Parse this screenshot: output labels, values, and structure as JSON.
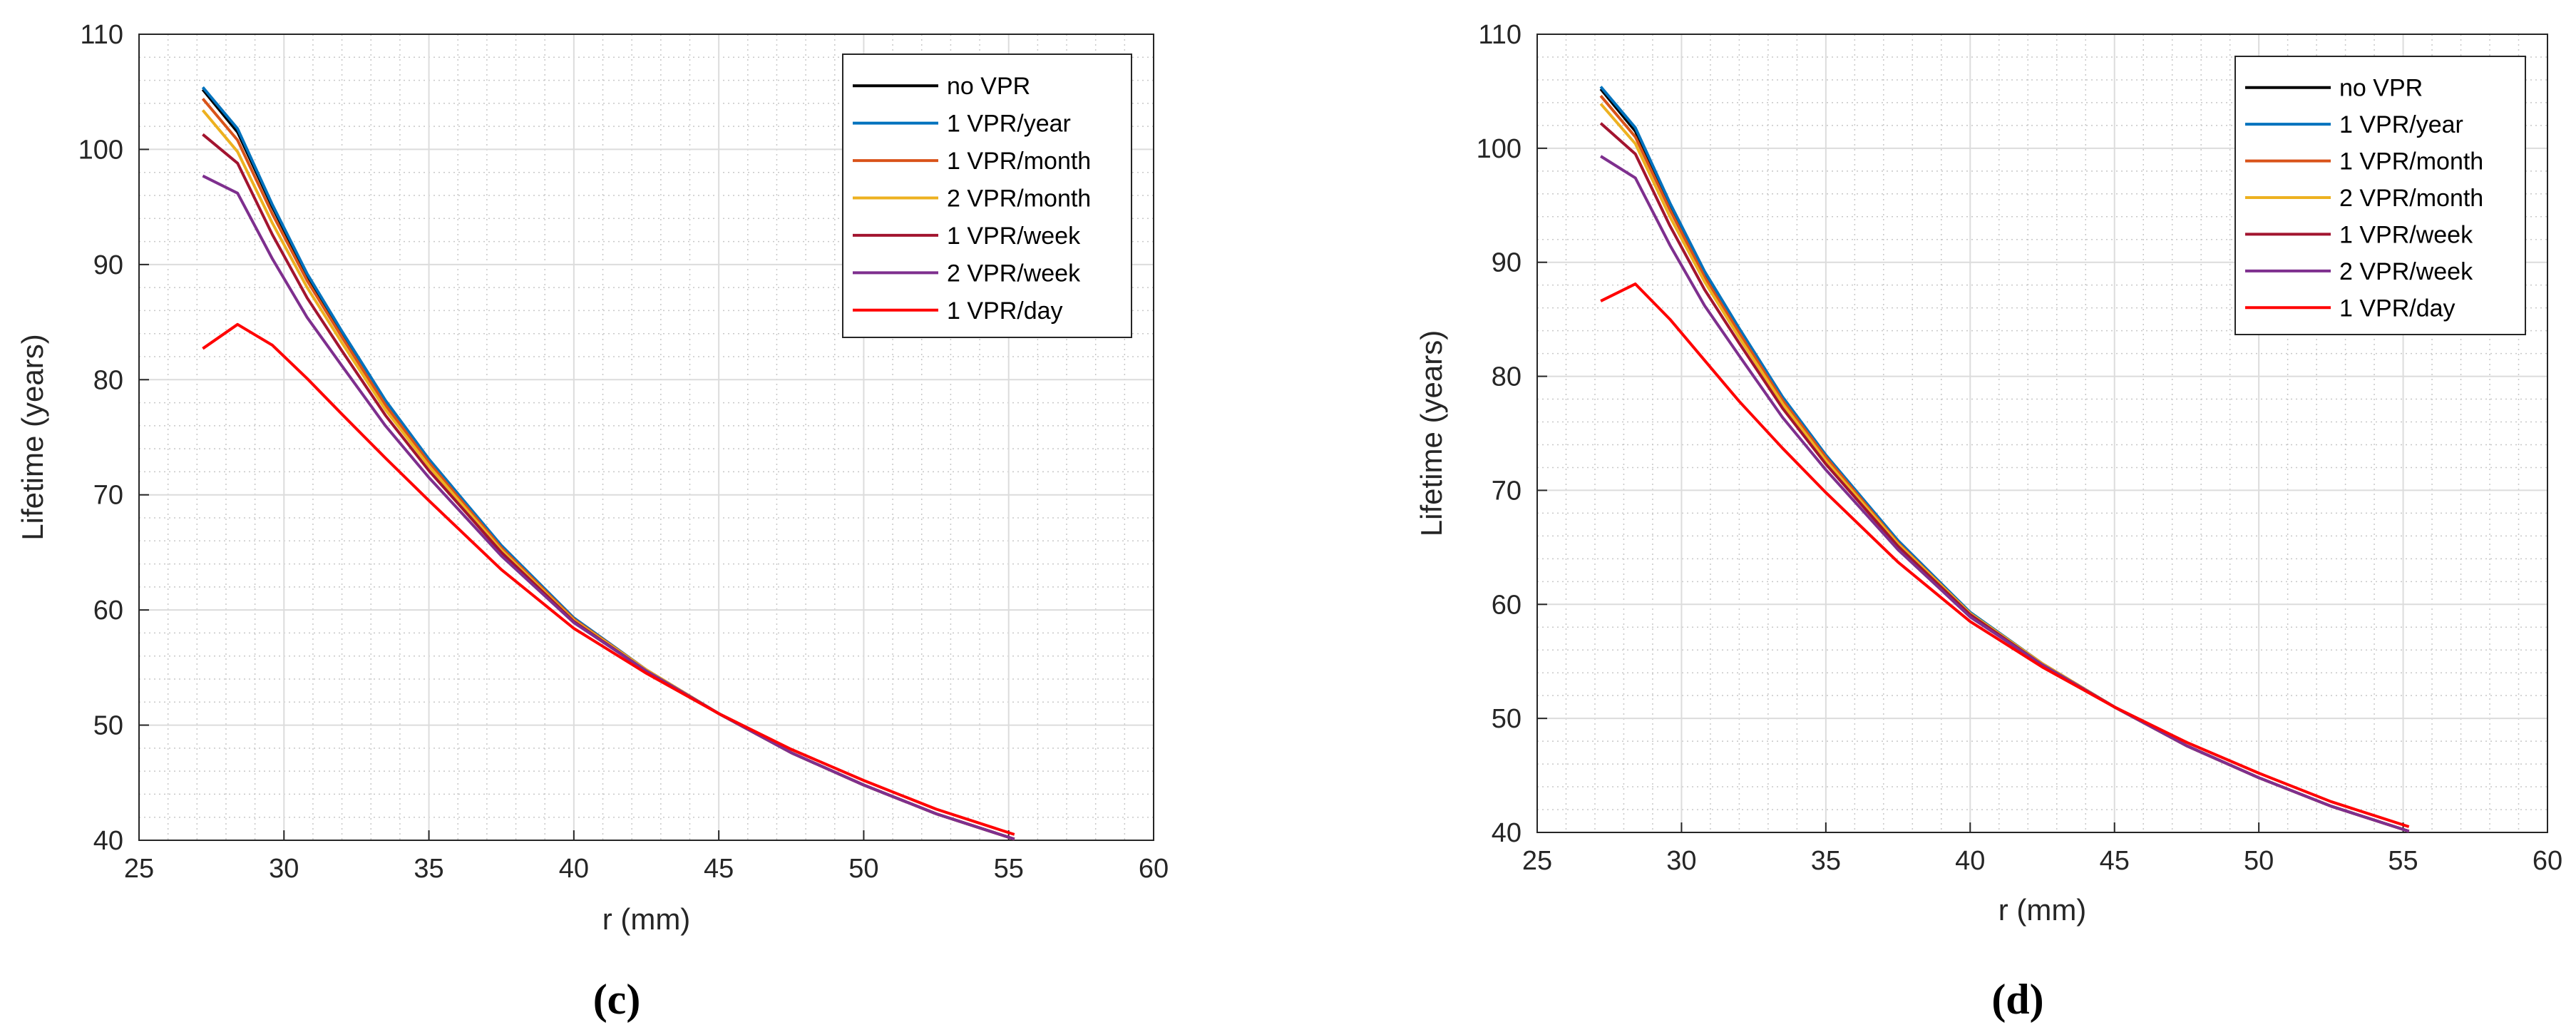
{
  "legend_location": "top-right",
  "chart_data": [
    {
      "type": "line",
      "panel_label": "(c)",
      "xlabel": "r (mm)",
      "ylabel": "Lifetime (years)",
      "xlim": [
        25,
        60
      ],
      "ylim": [
        40,
        110
      ],
      "xticks": [
        "25",
        "30",
        "35",
        "40",
        "45",
        "50",
        "55",
        "60"
      ],
      "yticks": [
        "40",
        "50",
        "60",
        "70",
        "80",
        "90",
        "100",
        "110"
      ],
      "grid": true,
      "minor_grid": true,
      "x": [
        27.2,
        28.4,
        29.6,
        30.8,
        32,
        33.5,
        35,
        37.5,
        40,
        42.5,
        45,
        47.5,
        50,
        52.5,
        55.2
      ],
      "series": [
        {
          "name": "no VPR",
          "color": "#000000",
          "values": [
            105.2,
            101.5,
            95,
            89,
            84,
            78,
            73,
            65.5,
            59.3,
            54.8,
            51,
            47.6,
            44.8,
            42.3,
            40.1
          ]
        },
        {
          "name": "1 VPR/year",
          "color": "#0072BD",
          "values": [
            105.4,
            101.8,
            95.2,
            89.2,
            84.2,
            78.2,
            73.1,
            65.6,
            59.3,
            54.8,
            51,
            47.6,
            44.8,
            42.3,
            40.1
          ]
        },
        {
          "name": "1 VPR/month",
          "color": "#D95319",
          "values": [
            104.4,
            100.8,
            94.4,
            88.6,
            83.7,
            77.8,
            72.8,
            65.4,
            59.2,
            54.8,
            51,
            47.6,
            44.8,
            42.3,
            40.1
          ]
        },
        {
          "name": "2 VPR/month",
          "color": "#EDB120",
          "values": [
            103.4,
            99.8,
            93.6,
            88,
            83.2,
            77.4,
            72.5,
            65.2,
            59.1,
            54.8,
            51,
            47.6,
            44.8,
            42.3,
            40.1
          ]
        },
        {
          "name": "1 VPR/week",
          "color": "#A2142F",
          "values": [
            101.3,
            98.8,
            92.6,
            87.1,
            82.5,
            76.9,
            72.1,
            65,
            59,
            54.7,
            51,
            47.6,
            44.8,
            42.3,
            40.1
          ]
        },
        {
          "name": "2 VPR/week",
          "color": "#7E2F8E",
          "values": [
            97.7,
            96.2,
            90.5,
            85.4,
            81.2,
            76,
            71.5,
            64.7,
            58.9,
            54.7,
            51,
            47.6,
            44.8,
            42.3,
            40.1
          ]
        },
        {
          "name": "1 VPR/day",
          "color": "#FF0000",
          "values": [
            82.7,
            84.8,
            83,
            80.1,
            77,
            73.2,
            69.5,
            63.5,
            58.4,
            54.5,
            51,
            47.9,
            45.2,
            42.7,
            40.5
          ]
        }
      ]
    },
    {
      "type": "line",
      "panel_label": "(d)",
      "xlabel": "r (mm)",
      "ylabel": "Lifetime (years)",
      "xlim": [
        25,
        60
      ],
      "ylim": [
        40,
        110
      ],
      "xticks": [
        "25",
        "30",
        "35",
        "40",
        "45",
        "50",
        "55",
        "60"
      ],
      "yticks": [
        "40",
        "50",
        "60",
        "70",
        "80",
        "90",
        "100",
        "110"
      ],
      "grid": true,
      "minor_grid": true,
      "x": [
        27.2,
        28.4,
        29.6,
        30.8,
        32,
        33.5,
        35,
        37.5,
        40,
        42.5,
        45,
        47.5,
        50,
        52.5,
        55.2
      ],
      "series": [
        {
          "name": "no VPR",
          "color": "#000000",
          "values": [
            105.2,
            101.5,
            95,
            89,
            84,
            78,
            73,
            65.5,
            59.3,
            54.8,
            51,
            47.6,
            44.8,
            42.3,
            40.1
          ]
        },
        {
          "name": "1 VPR/year",
          "color": "#0072BD",
          "values": [
            105.4,
            101.8,
            95.2,
            89.2,
            84.2,
            78.2,
            73.1,
            65.6,
            59.3,
            54.8,
            51,
            47.6,
            44.8,
            42.3,
            40.1
          ]
        },
        {
          "name": "1 VPR/month",
          "color": "#D95319",
          "values": [
            104.6,
            101,
            94.6,
            88.7,
            83.8,
            77.9,
            72.9,
            65.4,
            59.2,
            54.8,
            51,
            47.6,
            44.8,
            42.3,
            40.1
          ]
        },
        {
          "name": "2 VPR/month",
          "color": "#EDB120",
          "values": [
            103.9,
            100.4,
            94,
            88.3,
            83.4,
            77.6,
            72.6,
            65.3,
            59.2,
            54.8,
            51,
            47.6,
            44.8,
            42.3,
            40.1
          ]
        },
        {
          "name": "1 VPR/week",
          "color": "#A2142F",
          "values": [
            102.2,
            99.5,
            93.2,
            87.6,
            82.9,
            77.2,
            72.3,
            65.1,
            59.1,
            54.7,
            51,
            47.6,
            44.8,
            42.3,
            40.1
          ]
        },
        {
          "name": "2 VPR/week",
          "color": "#7E2F8E",
          "values": [
            99.3,
            97.4,
            91.5,
            86.2,
            81.8,
            76.4,
            71.8,
            64.8,
            58.9,
            54.7,
            51,
            47.6,
            44.8,
            42.3,
            40.1
          ]
        },
        {
          "name": "1 VPR/day",
          "color": "#FF0000",
          "values": [
            86.6,
            88.1,
            85,
            81.4,
            77.8,
            73.7,
            69.8,
            63.7,
            58.5,
            54.5,
            51,
            47.9,
            45.2,
            42.7,
            40.5
          ]
        }
      ]
    }
  ]
}
